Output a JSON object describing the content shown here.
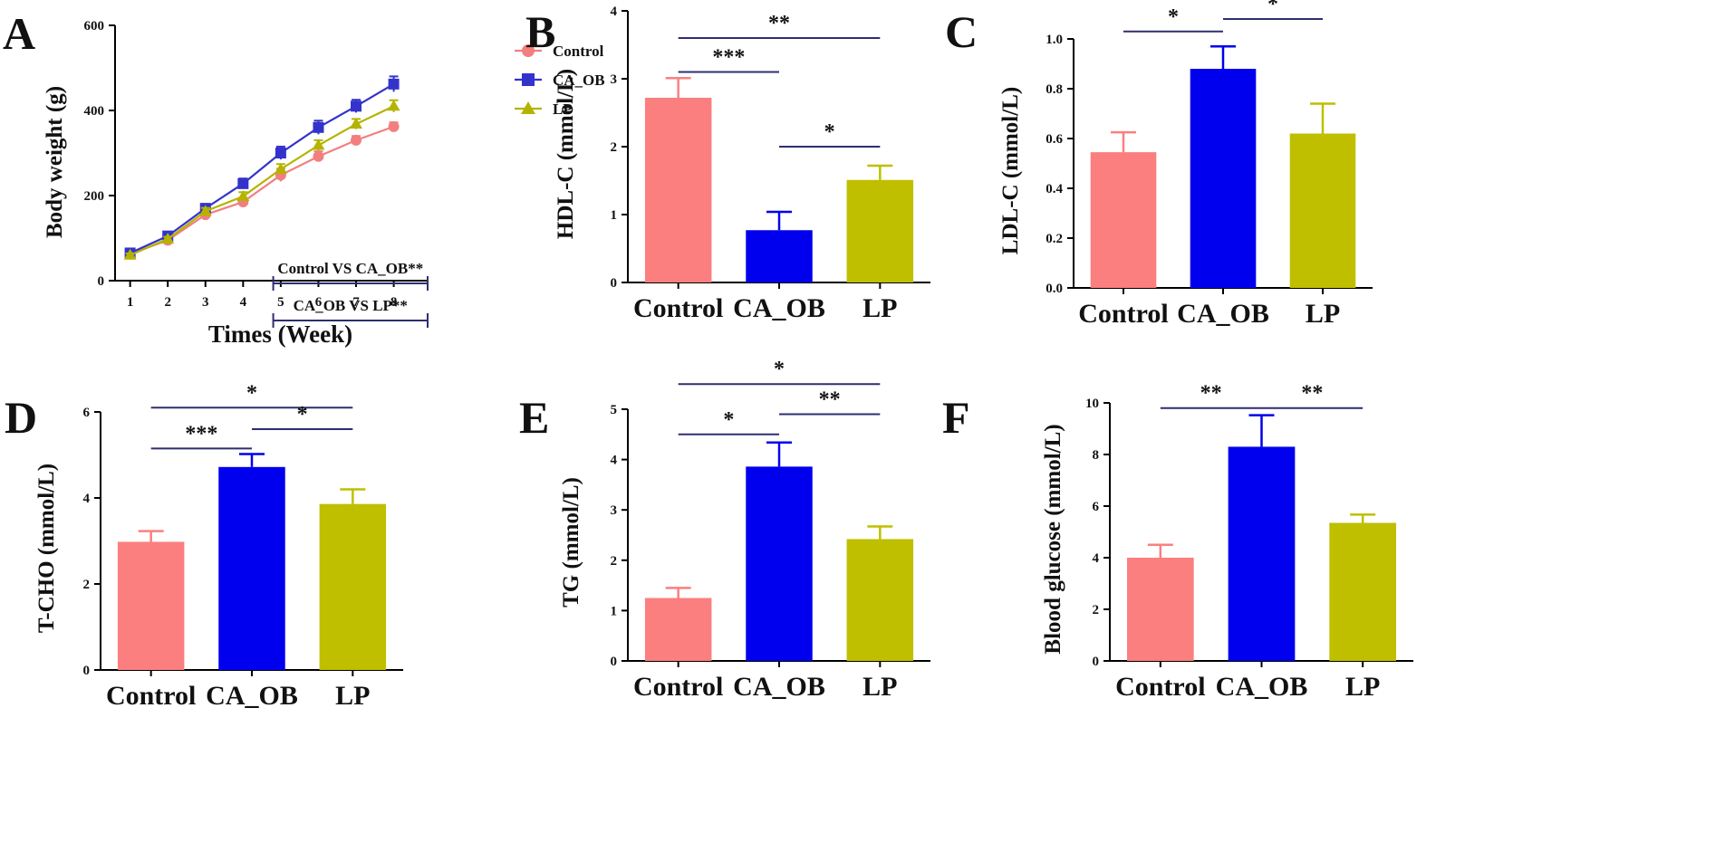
{
  "chart_data": [
    {
      "panel": "A",
      "type": "line",
      "xlabel": "Times (Week)",
      "ylabel": "Body weight (g)",
      "x": [
        1,
        2,
        3,
        4,
        5,
        6,
        7,
        8
      ],
      "ylim": [
        0,
        600
      ],
      "yticks": [
        0,
        200,
        400,
        600
      ],
      "legend_position": "top-right",
      "series": [
        {
          "name": "Control",
          "marker": "circle",
          "color": "#f27f7f",
          "values": [
            63,
            95,
            155,
            185,
            248,
            292,
            330,
            362
          ],
          "errors": [
            4,
            5,
            8,
            8,
            15,
            12,
            10,
            10
          ]
        },
        {
          "name": "CA_OB",
          "marker": "square",
          "color": "#3333cc",
          "values": [
            65,
            105,
            170,
            228,
            300,
            360,
            410,
            462
          ],
          "errors": [
            5,
            6,
            8,
            12,
            15,
            16,
            15,
            18
          ]
        },
        {
          "name": "LP",
          "marker": "triangle",
          "color": "#b4b400",
          "values": [
            60,
            98,
            163,
            198,
            262,
            318,
            368,
            410
          ],
          "errors": [
            4,
            5,
            8,
            10,
            12,
            12,
            12,
            14
          ]
        }
      ],
      "annotations": [
        {
          "text": "Control VS CA_OB**",
          "from_week": 4.8,
          "to_week": 8.9
        },
        {
          "text": "CA_OB VS LP**",
          "from_week": 4.8,
          "to_week": 8.9
        }
      ]
    },
    {
      "panel": "B",
      "type": "bar",
      "ylabel": "HDL-C (mmol/L)",
      "categories": [
        "Control",
        "CA_OB",
        "LP"
      ],
      "values": [
        2.72,
        0.77,
        1.51
      ],
      "errors": [
        0.29,
        0.27,
        0.21
      ],
      "ylim": [
        0,
        4
      ],
      "yticks": [
        0,
        1,
        2,
        3,
        4
      ],
      "significance": [
        {
          "from": 0,
          "to": 2,
          "at": 3.6,
          "label": "**"
        },
        {
          "from": 0,
          "to": 1,
          "at": 3.1,
          "label": "***"
        },
        {
          "from": 1,
          "to": 2,
          "at": 2.0,
          "label": "*"
        }
      ]
    },
    {
      "panel": "C",
      "type": "bar",
      "ylabel": "LDL-C (mmol/L)",
      "categories": [
        "Control",
        "CA_OB",
        "LP"
      ],
      "values": [
        0.545,
        0.88,
        0.62
      ],
      "errors": [
        0.08,
        0.09,
        0.12
      ],
      "ylim": [
        0,
        1.0
      ],
      "yticks": [
        "0.0",
        "0.2",
        "0.4",
        "0.6",
        "0.8",
        "1.0"
      ],
      "significance": [
        {
          "from": 0,
          "to": 1,
          "at": 1.03,
          "label": "*"
        },
        {
          "from": 1,
          "to": 2,
          "at": 1.08,
          "label": "*"
        }
      ]
    },
    {
      "panel": "D",
      "type": "bar",
      "ylabel": "T-CHO (mmol/L)",
      "categories": [
        "Control",
        "CA_OB",
        "LP"
      ],
      "values": [
        2.98,
        4.72,
        3.86
      ],
      "errors": [
        0.25,
        0.3,
        0.34
      ],
      "ylim": [
        0,
        6
      ],
      "yticks": [
        0,
        2,
        4,
        6
      ],
      "significance": [
        {
          "from": 0,
          "to": 2,
          "at": 6.1,
          "label": "*"
        },
        {
          "from": 0,
          "to": 1,
          "at": 5.15,
          "label": "***"
        },
        {
          "from": 1,
          "to": 2,
          "at": 5.6,
          "label": "*"
        }
      ]
    },
    {
      "panel": "E",
      "type": "bar",
      "ylabel": "TG (mmol/L)",
      "categories": [
        "Control",
        "CA_OB",
        "LP"
      ],
      "values": [
        1.25,
        3.86,
        2.42
      ],
      "errors": [
        0.2,
        0.48,
        0.25
      ],
      "ylim": [
        0,
        5
      ],
      "yticks": [
        0,
        1,
        2,
        3,
        4,
        5
      ],
      "significance": [
        {
          "from": 0,
          "to": 2,
          "at": 5.5,
          "label": "*"
        },
        {
          "from": 0,
          "to": 1,
          "at": 4.5,
          "label": "*"
        },
        {
          "from": 1,
          "to": 2,
          "at": 4.9,
          "label": "**"
        }
      ]
    },
    {
      "panel": "F",
      "type": "bar",
      "ylabel": "Blood glucose (mmol/L)",
      "categories": [
        "Control",
        "CA_OB",
        "LP"
      ],
      "values": [
        4.0,
        8.3,
        5.35
      ],
      "errors": [
        0.5,
        1.22,
        0.32
      ],
      "ylim": [
        0,
        10
      ],
      "yticks": [
        0,
        2,
        4,
        6,
        8,
        10
      ],
      "significance": [
        {
          "from": 0,
          "to": 1,
          "at": 9.8,
          "label": "**"
        },
        {
          "from": 1,
          "to": 2,
          "at": 9.8,
          "label": "**"
        }
      ]
    }
  ],
  "colors": {
    "Control": "#fb7f7f",
    "CA_OB": "#0000ee",
    "LP": "#bfbf00",
    "Control_line": "#f27f7f",
    "CA_OB_line": "#3333cc",
    "LP_line": "#b4b400",
    "axis": "#000000",
    "sig_line": "#2e2e70"
  }
}
